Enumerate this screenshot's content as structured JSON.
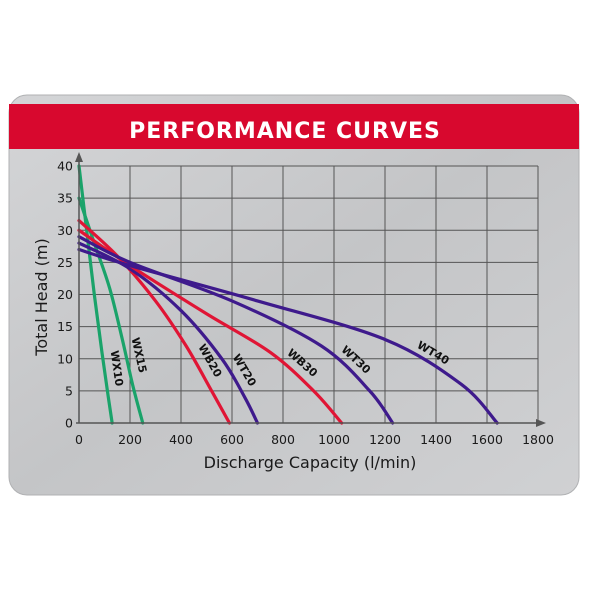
{
  "colors": {
    "banner": "#d8082e",
    "plate": "#c8c9cb",
    "grid": "#555555",
    "wx_series": "#1aa36a",
    "wb_series": "#e01535",
    "wt_series": "#3e1a8c"
  },
  "chart_data": {
    "type": "line",
    "title": "PERFORMANCE CURVES",
    "xlabel": "Discharge Capacity (l/min)",
    "ylabel": "Total Head (m)",
    "xlim": [
      0,
      1800
    ],
    "ylim": [
      0,
      40
    ],
    "x_ticks": [
      "0",
      "200",
      "400",
      "600",
      "800",
      "1000",
      "1200",
      "1400",
      "1600",
      "1800"
    ],
    "y_ticks": [
      "0",
      "5",
      "10",
      "15",
      "20",
      "25",
      "30",
      "35",
      "40"
    ],
    "grid": true,
    "series": [
      {
        "name": "WX10",
        "color_key": "wx_series",
        "points": [
          [
            0,
            40
          ],
          [
            30,
            30
          ],
          [
            60,
            20
          ],
          [
            90,
            11
          ],
          [
            115,
            4
          ],
          [
            130,
            0
          ]
        ]
      },
      {
        "name": "WX15",
        "color_key": "wx_series",
        "points": [
          [
            0,
            35
          ],
          [
            60,
            28
          ],
          [
            120,
            21
          ],
          [
            170,
            13
          ],
          [
            210,
            6
          ],
          [
            250,
            0
          ]
        ]
      },
      {
        "name": "WB20",
        "color_key": "wb_series",
        "points": [
          [
            0,
            31.5
          ],
          [
            150,
            26
          ],
          [
            300,
            19
          ],
          [
            420,
            12
          ],
          [
            520,
            5
          ],
          [
            590,
            0
          ]
        ]
      },
      {
        "name": "WT20",
        "color_key": "wt_series",
        "points": [
          [
            0,
            28
          ],
          [
            200,
            24
          ],
          [
            400,
            17.5
          ],
          [
            560,
            10
          ],
          [
            650,
            4
          ],
          [
            700,
            0
          ]
        ]
      },
      {
        "name": "WB30",
        "color_key": "wb_series",
        "points": [
          [
            0,
            30
          ],
          [
            200,
            24.5
          ],
          [
            500,
            17
          ],
          [
            750,
            11
          ],
          [
            920,
            5
          ],
          [
            1030,
            0
          ]
        ]
      },
      {
        "name": "WT30",
        "color_key": "wt_series",
        "points": [
          [
            0,
            29
          ],
          [
            200,
            25
          ],
          [
            600,
            19
          ],
          [
            950,
            12
          ],
          [
            1140,
            5
          ],
          [
            1230,
            0
          ]
        ]
      },
      {
        "name": "WT40",
        "color_key": "wt_series",
        "points": [
          [
            0,
            27
          ],
          [
            200,
            24.5
          ],
          [
            700,
            19
          ],
          [
            1200,
            13
          ],
          [
            1500,
            6
          ],
          [
            1640,
            0
          ]
        ]
      }
    ]
  }
}
